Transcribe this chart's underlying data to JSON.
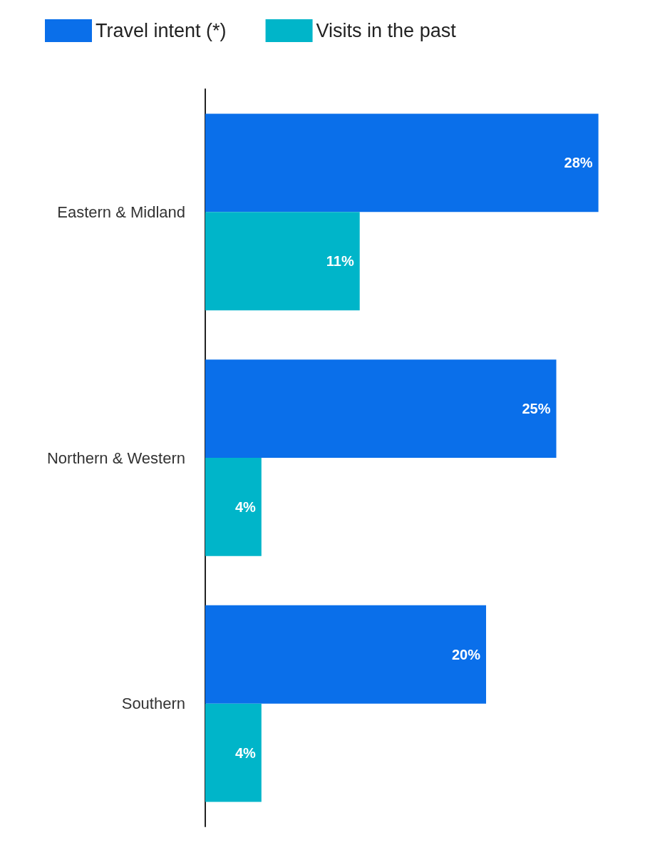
{
  "chart_data": {
    "type": "bar",
    "orientation": "horizontal",
    "categories": [
      "Eastern & Midland",
      "Northern & Western",
      "Southern"
    ],
    "series": [
      {
        "name": "Travel intent (*)",
        "color": "#0a6fea",
        "values": [
          28,
          25,
          20
        ],
        "value_labels": [
          "28%",
          "25%",
          "20%"
        ]
      },
      {
        "name": "Visits in the past",
        "color": "#00b5c9",
        "values": [
          11,
          4,
          4
        ],
        "value_labels": [
          "11%",
          "4%",
          "4%"
        ]
      }
    ],
    "legend": "top left",
    "grid": false
  }
}
